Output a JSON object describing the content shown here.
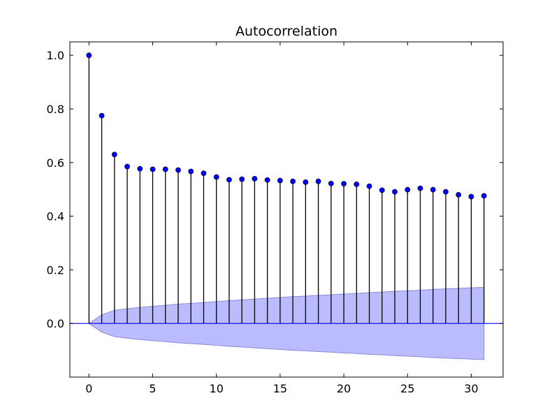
{
  "chart_data": {
    "type": "scatter",
    "title": "Autocorrelation",
    "xlabel": "",
    "ylabel": "",
    "xlim": [
      -1.5,
      32.5
    ],
    "ylim": [
      -0.2,
      1.05
    ],
    "xticks": [
      0,
      5,
      10,
      15,
      20,
      25,
      30
    ],
    "yticks": [
      0.0,
      0.2,
      0.4,
      0.6,
      0.8,
      1.0
    ],
    "ytick_labels": [
      "0.0",
      "0.2",
      "0.4",
      "0.6",
      "0.8",
      "1.0"
    ],
    "grid": false,
    "legend": "none",
    "series": [
      {
        "x": [
          0,
          1,
          2,
          3,
          4,
          5,
          6,
          7,
          8,
          9,
          10,
          11,
          12,
          13,
          14,
          15,
          16,
          17,
          18,
          19,
          20,
          21,
          22,
          23,
          24,
          25,
          26,
          27,
          28,
          29,
          30,
          31
        ],
        "values": [
          1.0,
          0.775,
          0.63,
          0.585,
          0.577,
          0.575,
          0.575,
          0.572,
          0.567,
          0.56,
          0.546,
          0.536,
          0.538,
          0.54,
          0.535,
          0.533,
          0.53,
          0.527,
          0.53,
          0.522,
          0.521,
          0.519,
          0.512,
          0.497,
          0.491,
          0.499,
          0.504,
          0.499,
          0.491,
          0.48,
          0.473,
          0.476
        ]
      }
    ],
    "confidence_band": {
      "x": [
        0,
        1,
        2,
        3,
        4,
        5,
        6,
        7,
        8,
        9,
        10,
        11,
        12,
        13,
        14,
        15,
        16,
        17,
        18,
        19,
        20,
        21,
        22,
        23,
        24,
        25,
        26,
        27,
        28,
        29,
        30,
        31
      ],
      "upper": [
        0.0,
        0.032,
        0.049,
        0.055,
        0.06,
        0.064,
        0.068,
        0.072,
        0.075,
        0.078,
        0.082,
        0.085,
        0.088,
        0.091,
        0.094,
        0.097,
        0.1,
        0.102,
        0.105,
        0.107,
        0.11,
        0.112,
        0.115,
        0.117,
        0.12,
        0.122,
        0.124,
        0.127,
        0.129,
        0.131,
        0.133,
        0.135
      ]
    },
    "colors": {
      "marker": "#0000ff",
      "stem": "#000000",
      "band": "#bbbbff",
      "band_edge": "#8a8ad8",
      "zero_line": "#0000ff"
    }
  }
}
